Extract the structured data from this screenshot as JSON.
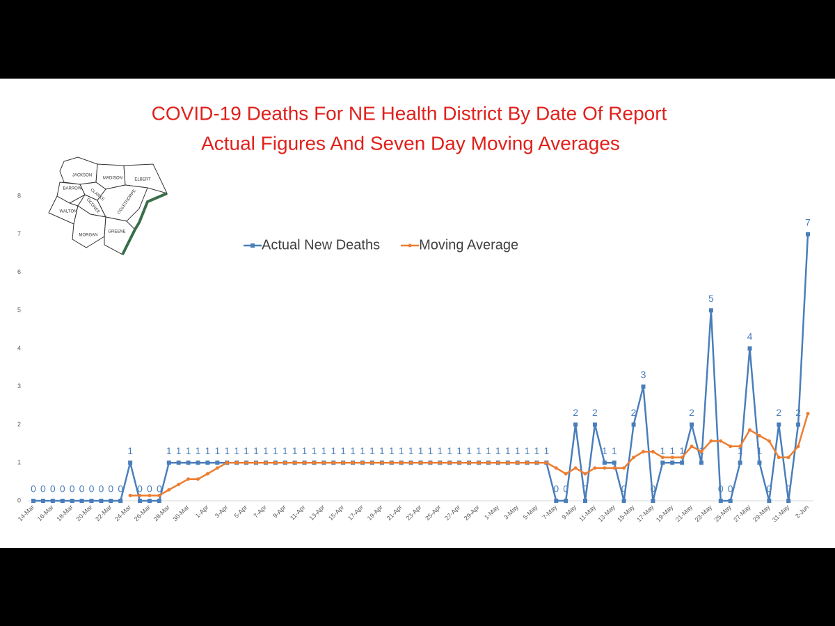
{
  "chart_data": {
    "type": "line",
    "title": [
      "COVID-19 Deaths For NE Health District By Date Of Report",
      "Actual Figures And Seven Day Moving Averages"
    ],
    "map_labels": [
      "JACKSON",
      "MADISON",
      "ELBERT",
      "BARROW",
      "CLARKE",
      "OCONEE",
      "OGLETHORPE",
      "WALTON",
      "MORGAN",
      "GREENE"
    ],
    "categories": [
      "14-Mar",
      null,
      "16-Mar",
      null,
      "18-Mar",
      null,
      "20-Mar",
      null,
      "22-Mar",
      null,
      "24-Mar",
      null,
      "26-Mar",
      null,
      "28-Mar",
      null,
      "30-Mar",
      null,
      "1-Apr",
      null,
      "3-Apr",
      null,
      "5-Apr",
      null,
      "7-Apr",
      null,
      "9-Apr",
      null,
      "11-Apr",
      null,
      "13-Apr",
      null,
      "15-Apr",
      null,
      "17-Apr",
      null,
      "19-Apr",
      null,
      "21-Apr",
      null,
      "23-Apr",
      null,
      "25-Apr",
      null,
      "27-Apr",
      null,
      "29-Apr",
      null,
      "1-May",
      null,
      "3-May",
      null,
      "5-May",
      null,
      "7-May",
      null,
      "9-May",
      null,
      "11-May",
      null,
      "13-May",
      null,
      "15-May",
      null,
      "17-May",
      null,
      "19-May",
      null,
      "21-May",
      null,
      "23-May",
      null,
      "25-May",
      null,
      "27-May",
      null,
      "29-May",
      null,
      "31-May",
      null,
      "2-Jun"
    ],
    "series": [
      {
        "name": "Actual New Deaths",
        "color": "#4a7ebb",
        "marker": "square",
        "data_labels": true,
        "values": [
          0,
          0,
          0,
          0,
          0,
          0,
          0,
          0,
          0,
          0,
          1,
          0,
          0,
          0,
          1,
          1,
          1,
          1,
          1,
          1,
          1,
          1,
          1,
          1,
          1,
          1,
          1,
          1,
          1,
          1,
          1,
          1,
          1,
          1,
          1,
          1,
          1,
          1,
          1,
          1,
          1,
          1,
          1,
          1,
          1,
          1,
          1,
          1,
          1,
          1,
          1,
          1,
          1,
          1,
          0,
          0,
          2,
          0,
          2,
          1,
          1,
          0,
          2,
          3,
          0,
          1,
          1,
          1,
          2,
          1,
          5,
          0,
          0,
          1,
          4,
          1,
          0,
          2,
          0,
          2,
          7
        ]
      },
      {
        "name": "Moving Average",
        "color": "#ed7d31",
        "marker": "circle",
        "data_labels": false,
        "values": [
          null,
          null,
          null,
          null,
          null,
          null,
          null,
          null,
          null,
          null,
          0.14,
          0.14,
          0.14,
          0.14,
          0.29,
          0.43,
          0.57,
          0.57,
          0.71,
          0.86,
          1,
          1,
          1,
          1,
          1,
          1,
          1,
          1,
          1,
          1,
          1,
          1,
          1,
          1,
          1,
          1,
          1,
          1,
          1,
          1,
          1,
          1,
          1,
          1,
          1,
          1,
          1,
          1,
          1,
          1,
          1,
          1,
          1,
          1,
          0.86,
          0.71,
          0.86,
          0.71,
          0.86,
          0.86,
          0.86,
          0.86,
          1.14,
          1.29,
          1.29,
          1.14,
          1.14,
          1.14,
          1.43,
          1.29,
          1.57,
          1.57,
          1.43,
          1.43,
          1.86,
          1.71,
          1.57,
          1.14,
          1.14,
          1.43,
          2.29
        ]
      }
    ],
    "ylim": [
      0,
      8
    ],
    "yticks": [
      0,
      1,
      2,
      3,
      4,
      5,
      6,
      7,
      8
    ],
    "grid": false,
    "legend": "top"
  }
}
